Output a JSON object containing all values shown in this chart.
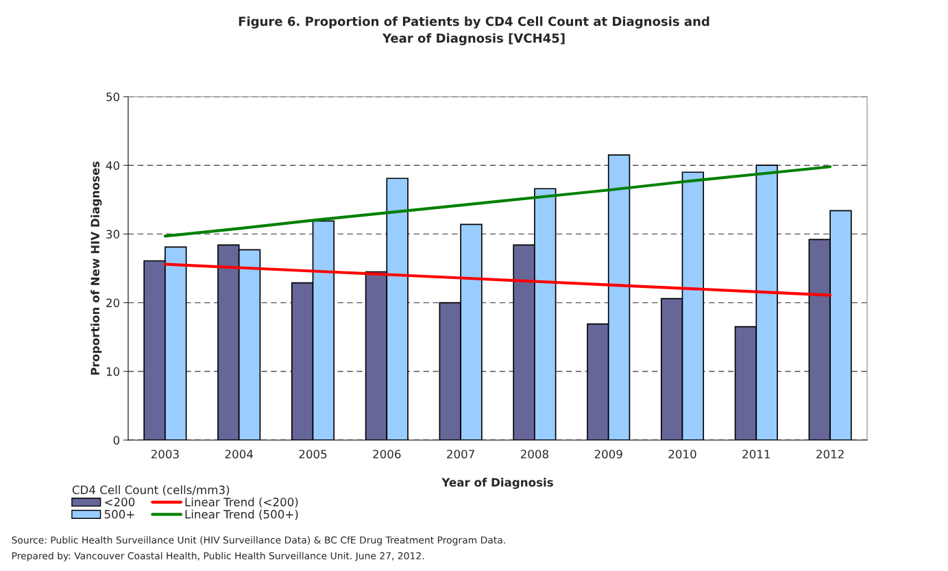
{
  "chart_data": {
    "type": "bar",
    "title": "Figure 6. Proportion of Patients by CD4 Cell Count at Diagnosis and\nYear of Diagnosis [VCH45]",
    "xlabel": "Year of Diagnosis",
    "ylabel": "Proportion of New HIV Diagnoses",
    "legend_title": "CD4 Cell Count (cells/mm3)",
    "categories": [
      "2003",
      "2004",
      "2005",
      "2006",
      "2007",
      "2008",
      "2009",
      "2010",
      "2011",
      "2012"
    ],
    "series": [
      {
        "name": "<200",
        "color": "#666699",
        "values": [
          26.1,
          28.4,
          22.9,
          24.5,
          20.0,
          28.4,
          16.9,
          20.6,
          16.5,
          29.2
        ]
      },
      {
        "name": "500+",
        "color": "#99ccff",
        "values": [
          28.1,
          27.7,
          31.9,
          38.1,
          31.4,
          36.6,
          41.5,
          39.0,
          40.0,
          33.4
        ]
      },
      {
        "name": "Linear Trend (<200)",
        "type": "line",
        "color": "#ff0000",
        "values": [
          25.6,
          25.1,
          24.6,
          24.1,
          23.6,
          23.1,
          22.6,
          22.1,
          21.6,
          21.1
        ]
      },
      {
        "name": "Linear Trend (500+)",
        "type": "line",
        "color": "#008000",
        "values": [
          29.7,
          30.8,
          32.0,
          33.1,
          34.2,
          35.3,
          36.4,
          37.6,
          38.7,
          39.8
        ]
      }
    ],
    "ylim": [
      0,
      50
    ],
    "yticks": [
      0,
      10,
      20,
      30,
      40,
      50
    ],
    "grid": "y",
    "line_style": "solid",
    "marker": "none",
    "legend": "bottom left",
    "annotations": [
      "Source: Public Health Surveillance Unit (HIV Surveillance Data) & BC CfE Drug Treatment Program Data.",
      "Prepared by: Vancouver Coastal Health, Public Health Surveillance Unit. June 27, 2012."
    ]
  }
}
